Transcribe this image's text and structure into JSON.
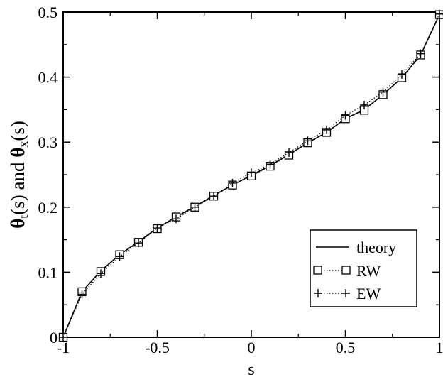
{
  "chart_data": {
    "type": "line",
    "xlabel": "s",
    "ylabel": {
      "part1": "θ",
      "sub1": "t",
      "part2": "(s) and ",
      "part3": "θ",
      "sub2": "x",
      "part4": "(s)"
    },
    "xlim": [
      -1,
      1
    ],
    "ylim": [
      0,
      0.5
    ],
    "x_ticks": [
      -1,
      -0.5,
      0,
      0.5,
      1
    ],
    "x_tick_labels": [
      "-1",
      "-0.5",
      "0",
      "0.5",
      "1"
    ],
    "y_ticks": [
      0,
      0.1,
      0.2,
      0.3,
      0.4,
      0.5
    ],
    "y_tick_labels": [
      "0",
      "0.1",
      "0.2",
      "0.3",
      "0.4",
      "0.5"
    ],
    "grid": false,
    "legend_position": "bottom-right",
    "series": [
      {
        "name": "theory",
        "style": "solid",
        "marker": "none",
        "x": [
          -1,
          -0.9,
          -0.8,
          -0.7,
          -0.6,
          -0.5,
          -0.4,
          -0.3,
          -0.2,
          -0.1,
          0,
          0.1,
          0.2,
          0.3,
          0.4,
          0.5,
          0.6,
          0.7,
          0.8,
          0.9,
          1
        ],
        "y": [
          0,
          0.07,
          0.102,
          0.127,
          0.147,
          0.168,
          0.185,
          0.201,
          0.218,
          0.234,
          0.249,
          0.264,
          0.281,
          0.299,
          0.315,
          0.336,
          0.35,
          0.373,
          0.399,
          0.434,
          0.496
        ]
      },
      {
        "name": "RW",
        "style": "dotted",
        "marker": "square",
        "x": [
          -1,
          -0.9,
          -0.8,
          -0.7,
          -0.6,
          -0.5,
          -0.4,
          -0.3,
          -0.2,
          -0.1,
          0,
          0.1,
          0.2,
          0.3,
          0.4,
          0.5,
          0.6,
          0.7,
          0.8,
          0.9,
          1
        ],
        "y": [
          0,
          0.07,
          0.101,
          0.127,
          0.146,
          0.167,
          0.185,
          0.2,
          0.217,
          0.234,
          0.248,
          0.263,
          0.28,
          0.299,
          0.315,
          0.336,
          0.349,
          0.373,
          0.399,
          0.434,
          0.496
        ]
      },
      {
        "name": "EW",
        "style": "dotted",
        "marker": "plus",
        "x": [
          -1,
          -0.9,
          -0.8,
          -0.7,
          -0.6,
          -0.5,
          -0.4,
          -0.3,
          -0.2,
          -0.1,
          0,
          0.1,
          0.2,
          0.3,
          0.4,
          0.5,
          0.6,
          0.7,
          0.8,
          0.9,
          1
        ],
        "y": [
          0,
          0.066,
          0.098,
          0.124,
          0.145,
          0.168,
          0.182,
          0.2,
          0.217,
          0.237,
          0.253,
          0.266,
          0.284,
          0.302,
          0.319,
          0.341,
          0.357,
          0.377,
          0.404,
          0.436,
          0.497
        ]
      }
    ]
  }
}
